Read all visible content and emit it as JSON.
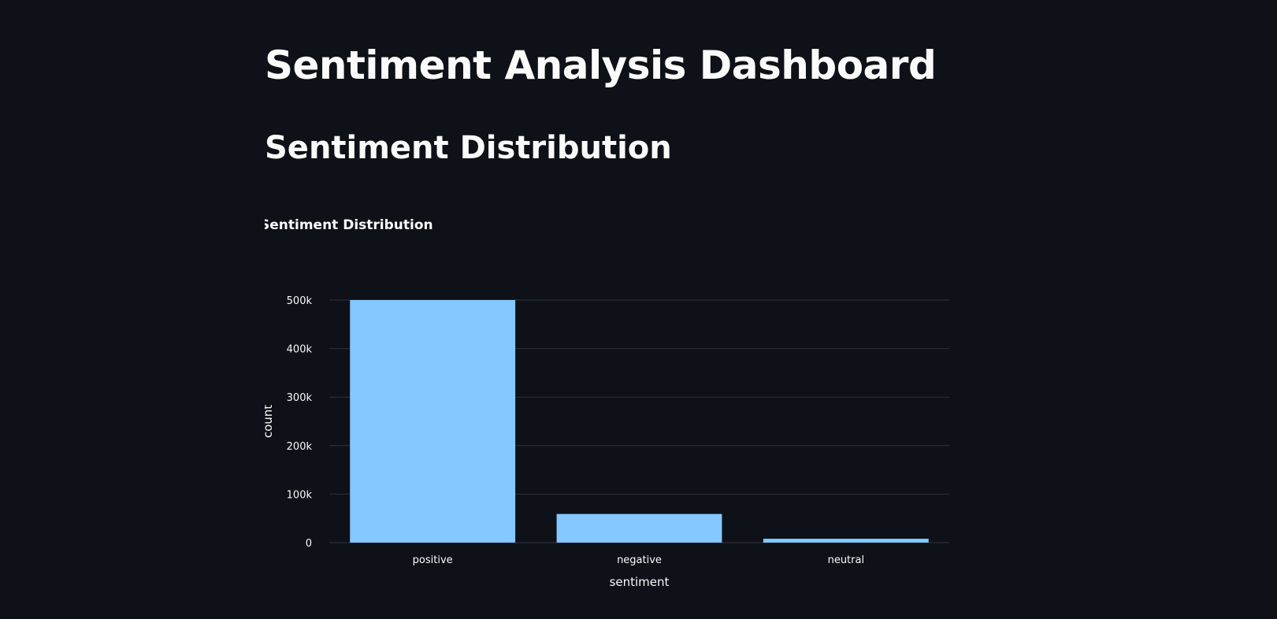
{
  "page": {
    "title": "Sentiment Analysis Dashboard",
    "section_title": "Sentiment Distribution"
  },
  "colors": {
    "background": "#0e1117",
    "text": "#fafafa",
    "bar": "#83c9ff",
    "grid": "#31333c"
  },
  "chart_data": {
    "type": "bar",
    "title": "Sentiment Distribution",
    "xlabel": "sentiment",
    "ylabel": "count",
    "categories": [
      "positive",
      "negative",
      "neutral"
    ],
    "values": [
      500000,
      59000,
      8000
    ],
    "ylim": [
      0,
      500000
    ],
    "yticks": [
      0,
      100000,
      200000,
      300000,
      400000,
      500000
    ],
    "ytick_labels": [
      "0",
      "100k",
      "200k",
      "300k",
      "400k",
      "500k"
    ],
    "grid": true,
    "legend": false
  }
}
